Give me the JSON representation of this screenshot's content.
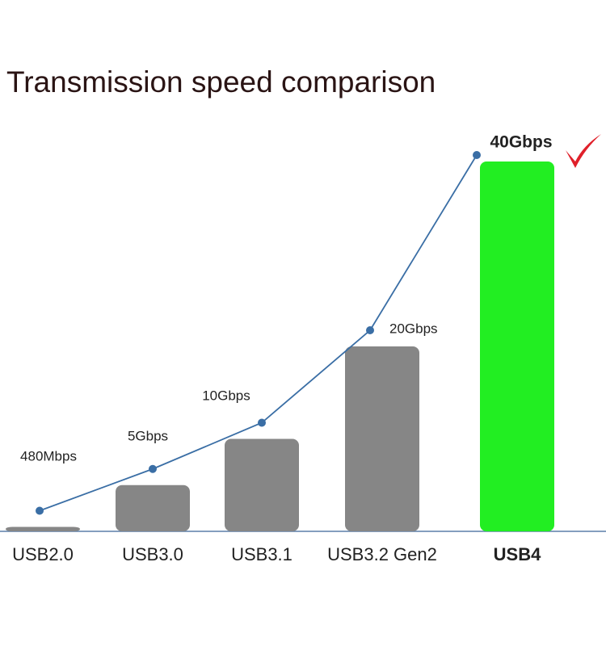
{
  "chart_data": {
    "type": "bar",
    "title": "Transmission speed comparison",
    "categories": [
      "USB2.0",
      "USB3.0",
      "USB3.1",
      "USB3.2 Gen2",
      "USB4"
    ],
    "values": [
      0.48,
      5,
      10,
      20,
      40
    ],
    "value_labels": [
      "480Mbps",
      "5Gbps",
      "10Gbps",
      "20Gbps",
      "40Gbps"
    ],
    "colors": [
      "#868686",
      "#868686",
      "#868686",
      "#868686",
      "#22ee22"
    ],
    "line_color": "#3a6ea5",
    "ylim": [
      0,
      40
    ]
  }
}
